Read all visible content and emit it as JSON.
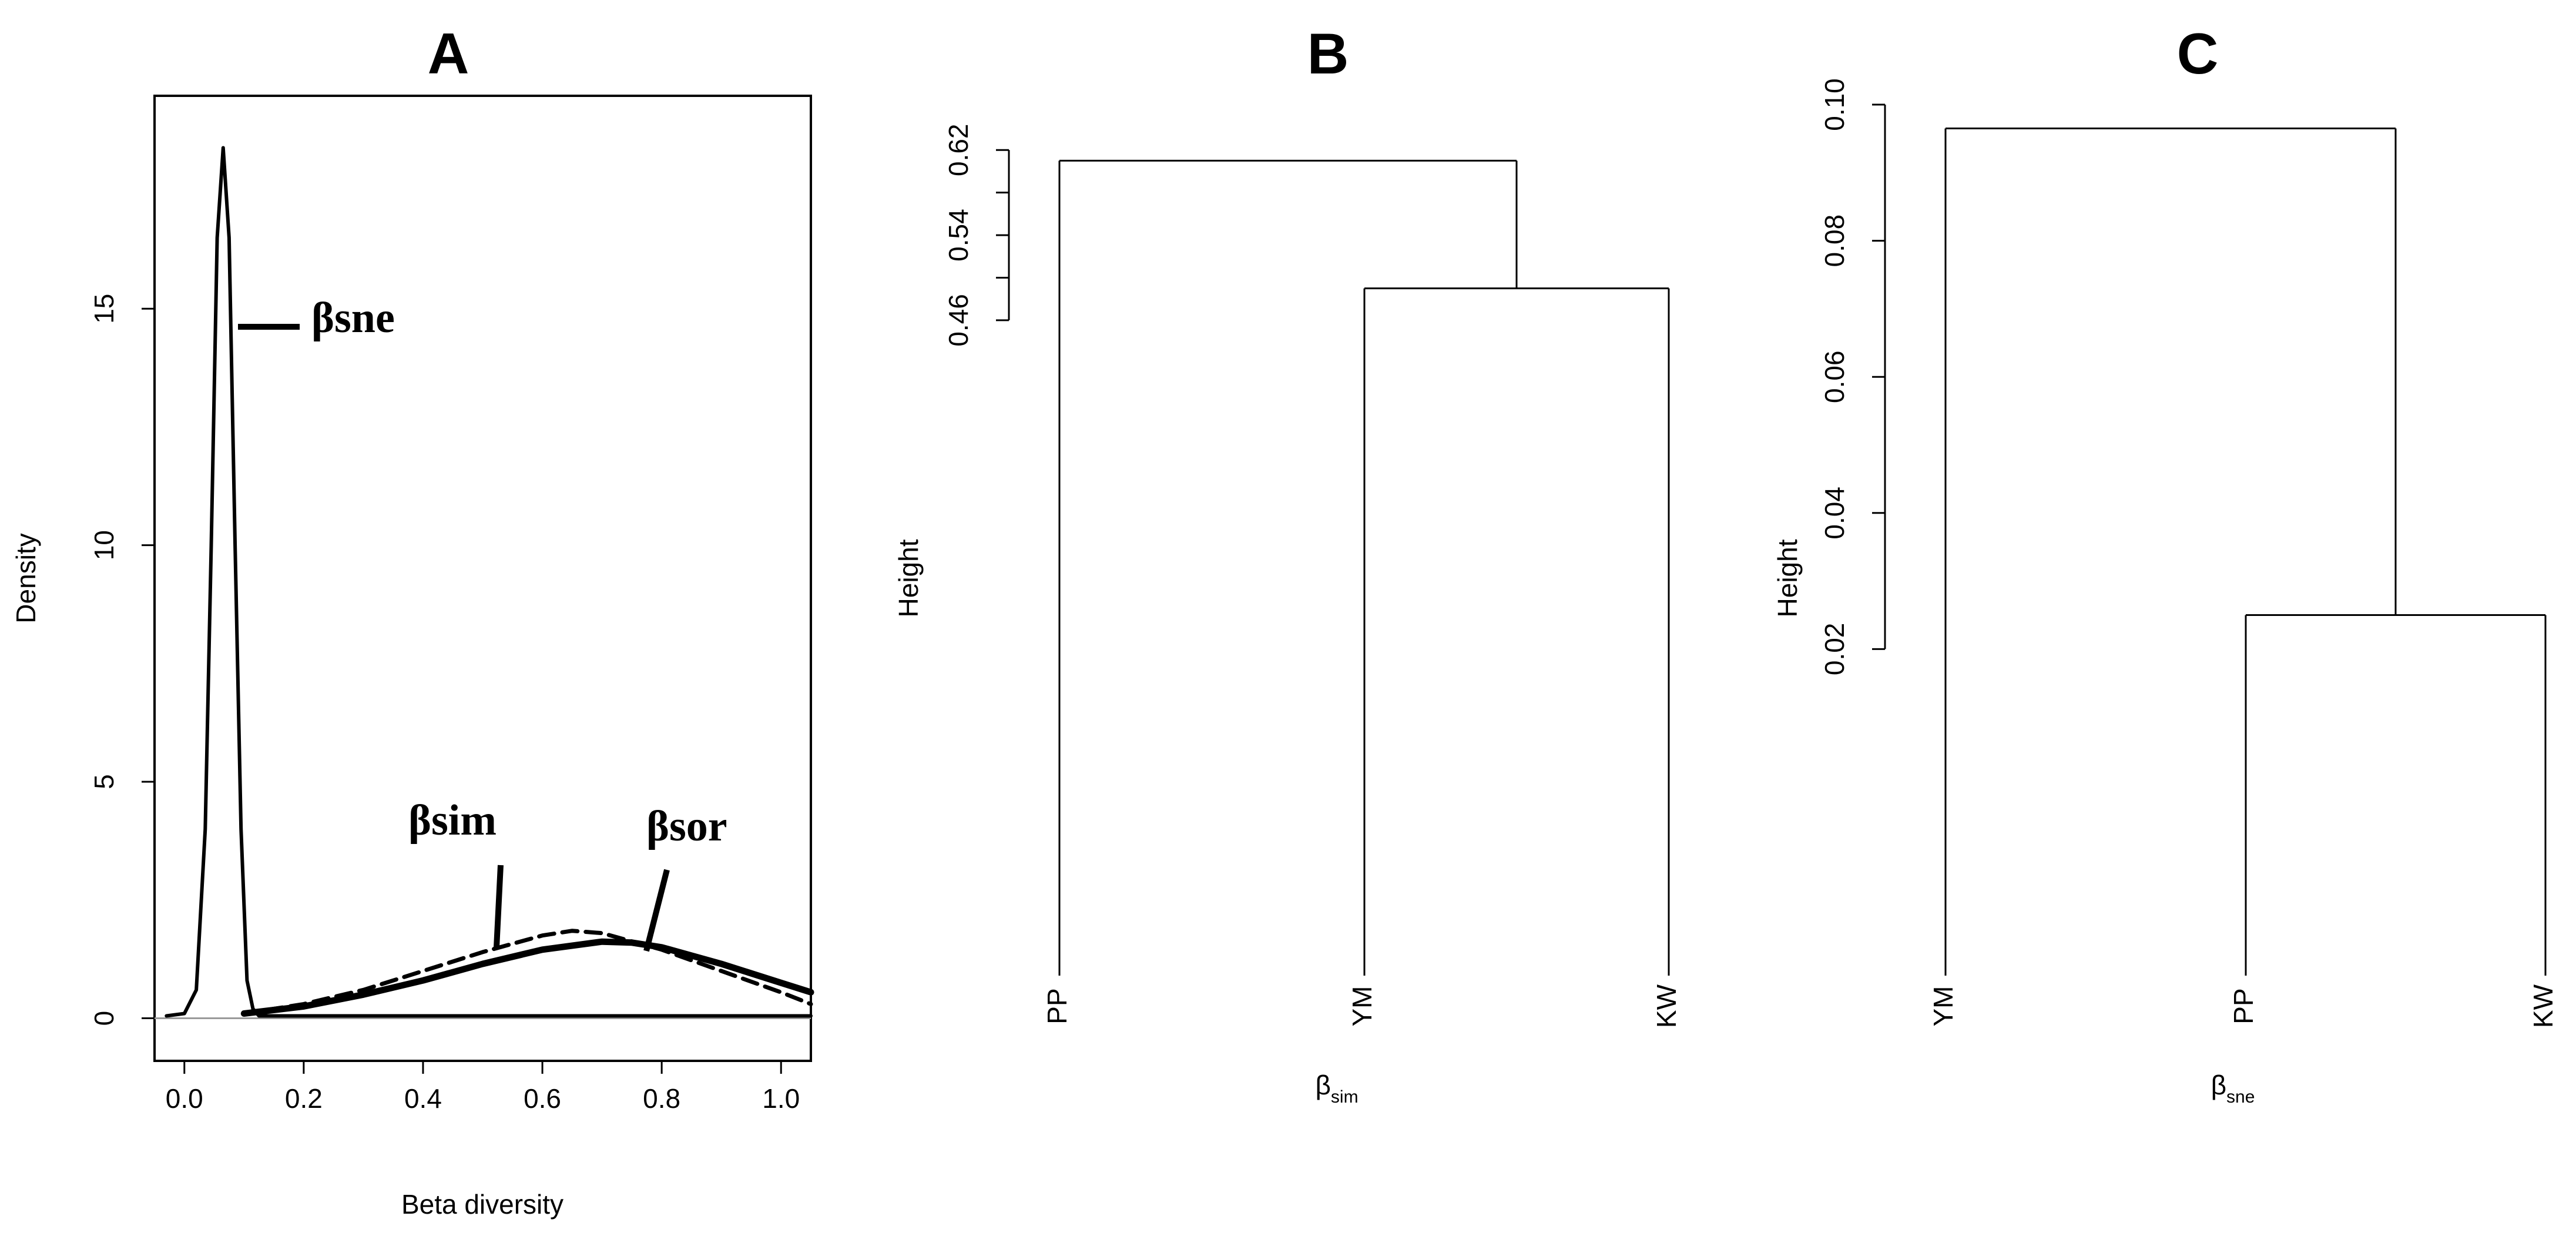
{
  "chart_data": [
    {
      "type": "line",
      "panel": "A",
      "title": "A",
      "xlabel": "Beta diversity",
      "ylabel": "Density",
      "xlim": [
        -0.05,
        1.05
      ],
      "ylim": [
        -0.9,
        19.5
      ],
      "xticks": [
        0.0,
        0.2,
        0.4,
        0.6,
        0.8,
        1.0
      ],
      "xtick_labels": [
        "0.0",
        "0.2",
        "0.4",
        "0.6",
        "0.8",
        "1.0"
      ],
      "yticks": [
        0,
        5,
        10,
        15
      ],
      "ytick_labels": [
        "0",
        "5",
        "10",
        "15"
      ],
      "grid": false,
      "zero_line": true,
      "annotations": [
        "βsne",
        "βsim",
        "βsor"
      ],
      "series": [
        {
          "name": "βsne",
          "style": "solid-thin",
          "x": [
            -0.03,
            0.0,
            0.02,
            0.035,
            0.045,
            0.055,
            0.065,
            0.075,
            0.085,
            0.095,
            0.105,
            0.115,
            0.125,
            1.05
          ],
          "y": [
            0.05,
            0.1,
            0.6,
            4.0,
            10.0,
            16.5,
            18.4,
            16.5,
            10.0,
            4.0,
            0.8,
            0.2,
            0.05,
            0.05
          ]
        },
        {
          "name": "βsim",
          "style": "dashed",
          "x": [
            0.1,
            0.2,
            0.3,
            0.4,
            0.5,
            0.6,
            0.65,
            0.7,
            0.8,
            0.9,
            1.0,
            1.05
          ],
          "y": [
            0.1,
            0.3,
            0.6,
            1.0,
            1.4,
            1.75,
            1.85,
            1.8,
            1.45,
            1.0,
            0.55,
            0.3
          ]
        },
        {
          "name": "βsor",
          "style": "solid-thick",
          "x": [
            0.1,
            0.2,
            0.3,
            0.4,
            0.5,
            0.6,
            0.7,
            0.75,
            0.8,
            0.9,
            1.0,
            1.05
          ],
          "y": [
            0.1,
            0.25,
            0.5,
            0.8,
            1.15,
            1.45,
            1.62,
            1.6,
            1.5,
            1.15,
            0.75,
            0.55
          ]
        }
      ]
    },
    {
      "type": "dendrogram",
      "panel": "B",
      "title": "B",
      "xlabel": "β",
      "xlabel_sub": "sim",
      "ylabel": "Height",
      "ylim": [
        0.45,
        0.645
      ],
      "yticks": [
        0.46,
        0.54,
        0.62
      ],
      "ytick_labels": [
        "0.46",
        "0.54",
        "0.62"
      ],
      "yticks_minor": [
        0.5,
        0.58
      ],
      "leaves": [
        "PP",
        "YM",
        "KW"
      ],
      "merges": [
        {
          "left": "YM",
          "right": "KW",
          "height": 0.49
        },
        {
          "left": "PP",
          "right": "YM+KW",
          "height": 0.61
        }
      ]
    },
    {
      "type": "dendrogram",
      "panel": "C",
      "title": "C",
      "xlabel": "β",
      "xlabel_sub": "sne",
      "ylabel": "Height",
      "ylim": [
        0.0,
        0.1
      ],
      "yticks": [
        0.02,
        0.04,
        0.06,
        0.08,
        0.1
      ],
      "ytick_labels": [
        "0.02",
        "0.04",
        "0.06",
        "0.08",
        "0.10"
      ],
      "leaves": [
        "YM",
        "PP",
        "KW"
      ],
      "merges": [
        {
          "left": "PP",
          "right": "KW",
          "height": 0.025
        },
        {
          "left": "YM",
          "right": "PP+KW",
          "height": 0.0965
        }
      ]
    }
  ]
}
